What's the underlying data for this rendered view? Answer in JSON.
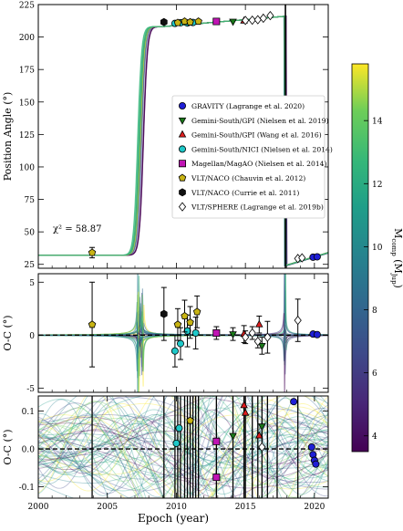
{
  "chart_data": {
    "type": "scatter",
    "x_label": "Epoch (year)",
    "x_ticks": [
      2000,
      2005,
      2010,
      2015,
      2020
    ],
    "x_range": [
      2000,
      2021
    ],
    "annotation": "χ² = 58.87",
    "colorbar": {
      "label": "M_comp (M_Jup)",
      "ticks": [
        4,
        6,
        8,
        10,
        12,
        14
      ],
      "range": [
        3.5,
        15.8
      ],
      "colormap": "viridis"
    },
    "legend": [
      {
        "label": "GRAVITY (Lagrange et al. 2020)",
        "marker": "circle",
        "color": "#1f1fd6"
      },
      {
        "label": "Gemini-South/GPI (Nielsen et al. 2019)",
        "marker": "triangle-down",
        "color": "#1a7a1a"
      },
      {
        "label": "Gemini-South/GPI (Wang et al. 2016)",
        "marker": "triangle-up",
        "color": "#e01e1e"
      },
      {
        "label": "Gemini-South/NICI (Nielsen et al. 2014)",
        "marker": "circle",
        "color": "#1ec8c8"
      },
      {
        "label": "Magellan/MagAO (Nielsen et al. 2014)",
        "marker": "square",
        "color": "#c014b4"
      },
      {
        "label": "VLT/NACO (Chauvin et al. 2012)",
        "marker": "pentagon",
        "color": "#c8b414"
      },
      {
        "label": "VLT/NACO (Currie et al. 2011)",
        "marker": "hexagon",
        "color": "#111111"
      },
      {
        "label": "VLT/SPHERE (Lagrange et al. 2019b)",
        "marker": "diamond",
        "color": "#ffffff"
      }
    ],
    "panels": [
      {
        "ylabel": "Position Angle (°)",
        "ylim": [
          22,
          225
        ],
        "yticks": [
          25,
          50,
          75,
          100,
          125,
          150,
          175,
          200,
          225
        ],
        "points": [
          {
            "x": 2003.9,
            "y": 34,
            "err": 4,
            "set": 5
          },
          {
            "x": 2009.1,
            "y": 211.5,
            "set": 6
          },
          {
            "x": 2009.9,
            "y": 210.5,
            "set": 3
          },
          {
            "x": 2010.3,
            "y": 211,
            "set": 3
          },
          {
            "x": 2010.8,
            "y": 210.8,
            "set": 3
          },
          {
            "x": 2011.2,
            "y": 211.2,
            "set": 3
          },
          {
            "x": 2010.1,
            "y": 211,
            "set": 5
          },
          {
            "x": 2010.6,
            "y": 212,
            "set": 5
          },
          {
            "x": 2011.0,
            "y": 211.5,
            "set": 5
          },
          {
            "x": 2011.6,
            "y": 212,
            "set": 5
          },
          {
            "x": 2012.9,
            "y": 212,
            "set": 4
          },
          {
            "x": 2014.1,
            "y": 212,
            "set": 1
          },
          {
            "x": 2014.9,
            "y": 212.5,
            "set": 2
          },
          {
            "x": 2015.0,
            "y": 212.8,
            "set": 7
          },
          {
            "x": 2015.5,
            "y": 213.0,
            "set": 7
          },
          {
            "x": 2015.9,
            "y": 213.3,
            "set": 7
          },
          {
            "x": 2016.3,
            "y": 214.5,
            "set": 7
          },
          {
            "x": 2016.8,
            "y": 216.5,
            "set": 7
          },
          {
            "x": 2018.8,
            "y": 29.5,
            "set": 7
          },
          {
            "x": 2019.1,
            "y": 30,
            "set": 7
          },
          {
            "x": 2019.9,
            "y": 30.5,
            "set": 0
          },
          {
            "x": 2020.2,
            "y": 30.8,
            "set": 0
          }
        ]
      },
      {
        "ylabel": "O-C (°)",
        "ylim": [
          -5.4,
          5.8
        ],
        "yticks": [
          -5,
          0,
          5
        ],
        "points": [
          {
            "x": 2003.9,
            "y": 1,
            "err": 4,
            "set": 5
          },
          {
            "x": 2009.1,
            "y": 2,
            "err": 2.5,
            "set": 6
          },
          {
            "x": 2009.9,
            "y": -1.5,
            "err": 1.5,
            "set": 3
          },
          {
            "x": 2010.3,
            "y": -0.8,
            "err": 1.5,
            "set": 3
          },
          {
            "x": 2010.8,
            "y": 0.4,
            "err": 1.5,
            "set": 3
          },
          {
            "x": 2011.4,
            "y": 0.2,
            "err": 1.5,
            "set": 3
          },
          {
            "x": 2010.1,
            "y": 1,
            "err": 1.5,
            "set": 5
          },
          {
            "x": 2010.6,
            "y": 1.8,
            "err": 1.5,
            "set": 5
          },
          {
            "x": 2011.0,
            "y": 1.2,
            "err": 1.5,
            "set": 5
          },
          {
            "x": 2011.5,
            "y": 2.2,
            "err": 1.5,
            "set": 5
          },
          {
            "x": 2012.9,
            "y": 0.2,
            "err": 0.6,
            "set": 4
          },
          {
            "x": 2014.1,
            "y": 0.1,
            "err": 0.6,
            "set": 1
          },
          {
            "x": 2014.9,
            "y": 0.1,
            "err": 0.8,
            "set": 2
          },
          {
            "x": 2016.0,
            "y": 1,
            "err": 0.8,
            "set": 2
          },
          {
            "x": 2016.2,
            "y": -1,
            "err": 0.8,
            "set": 1
          },
          {
            "x": 2015.0,
            "y": -0.2,
            "err": 0.6,
            "set": 7
          },
          {
            "x": 2015.5,
            "y": 0.2,
            "err": 0.6,
            "set": 7
          },
          {
            "x": 2015.9,
            "y": -0.6,
            "err": 0.6,
            "set": 7
          },
          {
            "x": 2016.6,
            "y": -0.2,
            "err": 1.5,
            "set": 7
          },
          {
            "x": 2018.8,
            "y": 1.4,
            "err": 2,
            "set": 7
          },
          {
            "x": 2019.9,
            "y": 0.1,
            "set": 0
          },
          {
            "x": 2020.2,
            "y": 0.05,
            "set": 0
          }
        ]
      },
      {
        "ylabel": "O-C (°)",
        "ylim": [
          -0.13,
          0.14
        ],
        "yticks": [
          -0.1,
          0.0,
          0.1
        ],
        "points": [
          {
            "x": 2010.2,
            "y": 0.055,
            "set": 3
          },
          {
            "x": 2010.0,
            "y": 0.015,
            "set": 3
          },
          {
            "x": 2011.0,
            "y": 0.075,
            "set": 5
          },
          {
            "x": 2012.9,
            "y": -0.075,
            "set": 4
          },
          {
            "x": 2012.9,
            "y": 0.02,
            "set": 4
          },
          {
            "x": 2014.1,
            "y": 0.035,
            "set": 1
          },
          {
            "x": 2014.9,
            "y": 0.115,
            "set": 2
          },
          {
            "x": 2015.0,
            "y": 0.095,
            "set": 2
          },
          {
            "x": 2016.0,
            "y": 0.035,
            "set": 2
          },
          {
            "x": 2016.2,
            "y": 0.06,
            "set": 1
          },
          {
            "x": 2016.2,
            "y": 0.005,
            "set": 7
          },
          {
            "x": 2018.5,
            "y": 0.125,
            "set": 0
          },
          {
            "x": 2019.8,
            "y": 0.005,
            "set": 0
          },
          {
            "x": 2019.9,
            "y": -0.015,
            "set": 0
          },
          {
            "x": 2020.0,
            "y": -0.03,
            "set": 0
          },
          {
            "x": 2020.1,
            "y": -0.04,
            "set": 0
          }
        ]
      }
    ]
  }
}
